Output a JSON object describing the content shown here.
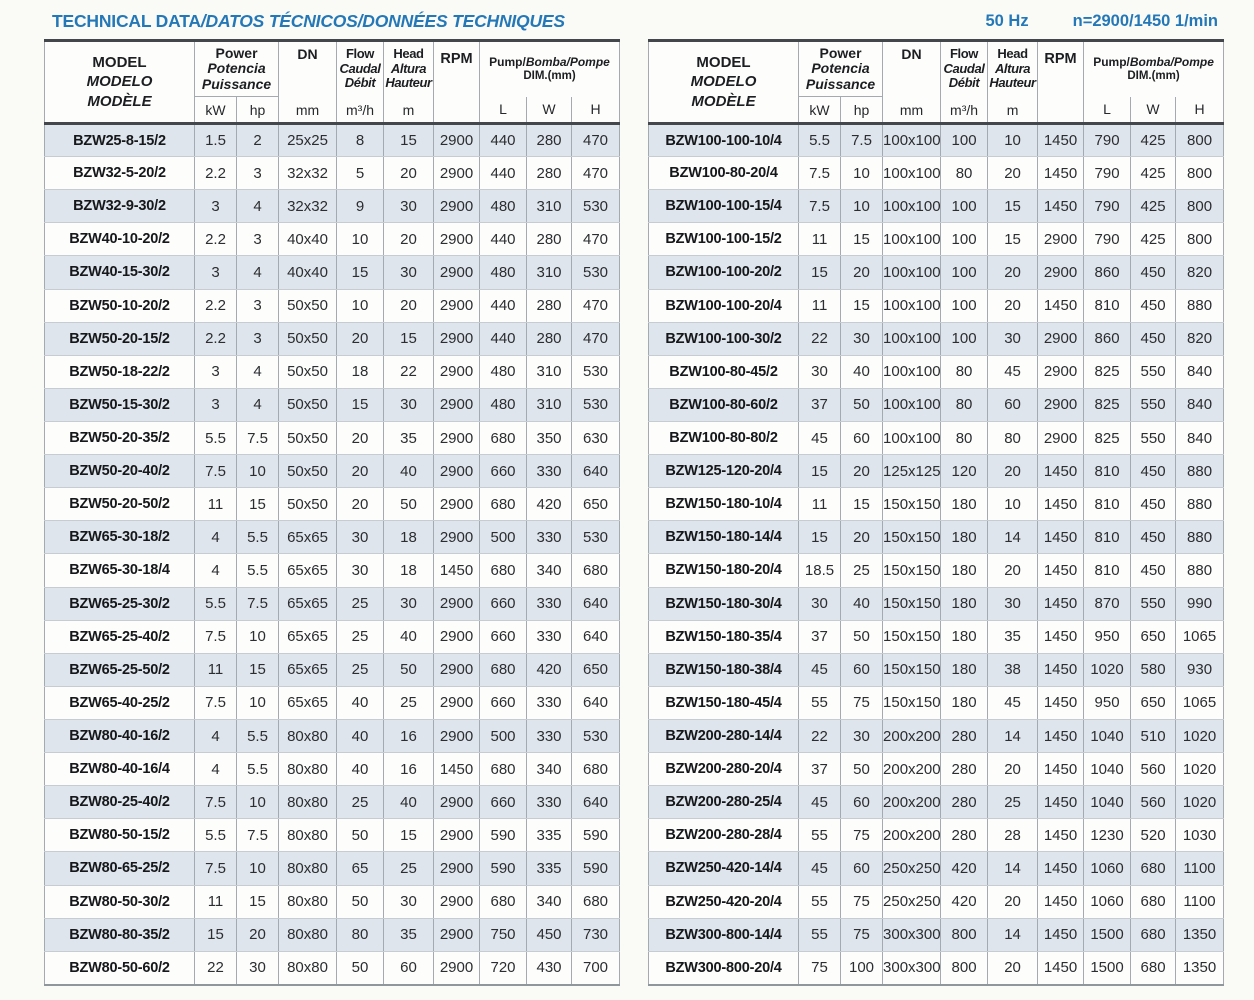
{
  "page": {
    "title_part1": "TECHNICAL DATA",
    "title_part2": "/DATOS TÉCNICOS/DONNÉES TECHNIQUES",
    "frequency": "50 Hz",
    "speed": "n=2900/1450 1/min",
    "accent_color": "#2478b7",
    "row_shade_color": "#dee5ec"
  },
  "table_header": {
    "model_lines": [
      "MODEL",
      "MODELO",
      "MODÈLE"
    ],
    "power_lines": [
      "Power",
      "Potencia",
      "Puissance"
    ],
    "power_units": [
      "kW",
      "hp"
    ],
    "dn_label": "DN",
    "dn_unit": "mm",
    "flow_lines": [
      "Flow",
      "Caudal",
      "Débit"
    ],
    "flow_unit": "m³/h",
    "head_lines": [
      "Head",
      "Altura",
      "Hauteur"
    ],
    "head_unit": "m",
    "rpm_label": "RPM",
    "dim_line1_a": "Pump/",
    "dim_line1_b": "Bomba/Pompe",
    "dim_line2": "DIM.(mm)",
    "dim_units": [
      "L",
      "W",
      "H"
    ]
  },
  "columns": [
    "MODEL",
    "kW",
    "hp",
    "DN mm",
    "Flow m³/h",
    "Head m",
    "RPM",
    "L",
    "W",
    "H"
  ],
  "tables": {
    "left": {
      "rows": [
        [
          "BZW25-8-15/2",
          "1.5",
          "2",
          "25x25",
          "8",
          "15",
          "2900",
          "440",
          "280",
          "470"
        ],
        [
          "BZW32-5-20/2",
          "2.2",
          "3",
          "32x32",
          "5",
          "20",
          "2900",
          "440",
          "280",
          "470"
        ],
        [
          "BZW32-9-30/2",
          "3",
          "4",
          "32x32",
          "9",
          "30",
          "2900",
          "480",
          "310",
          "530"
        ],
        [
          "BZW40-10-20/2",
          "2.2",
          "3",
          "40x40",
          "10",
          "20",
          "2900",
          "440",
          "280",
          "470"
        ],
        [
          "BZW40-15-30/2",
          "3",
          "4",
          "40x40",
          "15",
          "30",
          "2900",
          "480",
          "310",
          "530"
        ],
        [
          "BZW50-10-20/2",
          "2.2",
          "3",
          "50x50",
          "10",
          "20",
          "2900",
          "440",
          "280",
          "470"
        ],
        [
          "BZW50-20-15/2",
          "2.2",
          "3",
          "50x50",
          "20",
          "15",
          "2900",
          "440",
          "280",
          "470"
        ],
        [
          "BZW50-18-22/2",
          "3",
          "4",
          "50x50",
          "18",
          "22",
          "2900",
          "480",
          "310",
          "530"
        ],
        [
          "BZW50-15-30/2",
          "3",
          "4",
          "50x50",
          "15",
          "30",
          "2900",
          "480",
          "310",
          "530"
        ],
        [
          "BZW50-20-35/2",
          "5.5",
          "7.5",
          "50x50",
          "20",
          "35",
          "2900",
          "680",
          "350",
          "630"
        ],
        [
          "BZW50-20-40/2",
          "7.5",
          "10",
          "50x50",
          "20",
          "40",
          "2900",
          "660",
          "330",
          "640"
        ],
        [
          "BZW50-20-50/2",
          "11",
          "15",
          "50x50",
          "20",
          "50",
          "2900",
          "680",
          "420",
          "650"
        ],
        [
          "BZW65-30-18/2",
          "4",
          "5.5",
          "65x65",
          "30",
          "18",
          "2900",
          "500",
          "330",
          "530"
        ],
        [
          "BZW65-30-18/4",
          "4",
          "5.5",
          "65x65",
          "30",
          "18",
          "1450",
          "680",
          "340",
          "680"
        ],
        [
          "BZW65-25-30/2",
          "5.5",
          "7.5",
          "65x65",
          "25",
          "30",
          "2900",
          "660",
          "330",
          "640"
        ],
        [
          "BZW65-25-40/2",
          "7.5",
          "10",
          "65x65",
          "25",
          "40",
          "2900",
          "660",
          "330",
          "640"
        ],
        [
          "BZW65-25-50/2",
          "11",
          "15",
          "65x65",
          "25",
          "50",
          "2900",
          "680",
          "420",
          "650"
        ],
        [
          "BZW65-40-25/2",
          "7.5",
          "10",
          "65x65",
          "40",
          "25",
          "2900",
          "660",
          "330",
          "640"
        ],
        [
          "BZW80-40-16/2",
          "4",
          "5.5",
          "80x80",
          "40",
          "16",
          "2900",
          "500",
          "330",
          "530"
        ],
        [
          "BZW80-40-16/4",
          "4",
          "5.5",
          "80x80",
          "40",
          "16",
          "1450",
          "680",
          "340",
          "680"
        ],
        [
          "BZW80-25-40/2",
          "7.5",
          "10",
          "80x80",
          "25",
          "40",
          "2900",
          "660",
          "330",
          "640"
        ],
        [
          "BZW80-50-15/2",
          "5.5",
          "7.5",
          "80x80",
          "50",
          "15",
          "2900",
          "590",
          "335",
          "590"
        ],
        [
          "BZW80-65-25/2",
          "7.5",
          "10",
          "80x80",
          "65",
          "25",
          "2900",
          "590",
          "335",
          "590"
        ],
        [
          "BZW80-50-30/2",
          "11",
          "15",
          "80x80",
          "50",
          "30",
          "2900",
          "680",
          "340",
          "680"
        ],
        [
          "BZW80-80-35/2",
          "15",
          "20",
          "80x80",
          "80",
          "35",
          "2900",
          "750",
          "450",
          "730"
        ],
        [
          "BZW80-50-60/2",
          "22",
          "30",
          "80x80",
          "50",
          "60",
          "2900",
          "720",
          "430",
          "700"
        ]
      ]
    },
    "right": {
      "rows": [
        [
          "BZW100-100-10/4",
          "5.5",
          "7.5",
          "100x100",
          "100",
          "10",
          "1450",
          "790",
          "425",
          "800"
        ],
        [
          "BZW100-80-20/4",
          "7.5",
          "10",
          "100x100",
          "80",
          "20",
          "1450",
          "790",
          "425",
          "800"
        ],
        [
          "BZW100-100-15/4",
          "7.5",
          "10",
          "100x100",
          "100",
          "15",
          "1450",
          "790",
          "425",
          "800"
        ],
        [
          "BZW100-100-15/2",
          "11",
          "15",
          "100x100",
          "100",
          "15",
          "2900",
          "790",
          "425",
          "800"
        ],
        [
          "BZW100-100-20/2",
          "15",
          "20",
          "100x100",
          "100",
          "20",
          "2900",
          "860",
          "450",
          "820"
        ],
        [
          "BZW100-100-20/4",
          "11",
          "15",
          "100x100",
          "100",
          "20",
          "1450",
          "810",
          "450",
          "880"
        ],
        [
          "BZW100-100-30/2",
          "22",
          "30",
          "100x100",
          "100",
          "30",
          "2900",
          "860",
          "450",
          "820"
        ],
        [
          "BZW100-80-45/2",
          "30",
          "40",
          "100x100",
          "80",
          "45",
          "2900",
          "825",
          "550",
          "840"
        ],
        [
          "BZW100-80-60/2",
          "37",
          "50",
          "100x100",
          "80",
          "60",
          "2900",
          "825",
          "550",
          "840"
        ],
        [
          "BZW100-80-80/2",
          "45",
          "60",
          "100x100",
          "80",
          "80",
          "2900",
          "825",
          "550",
          "840"
        ],
        [
          "BZW125-120-20/4",
          "15",
          "20",
          "125x125",
          "120",
          "20",
          "1450",
          "810",
          "450",
          "880"
        ],
        [
          "BZW150-180-10/4",
          "11",
          "15",
          "150x150",
          "180",
          "10",
          "1450",
          "810",
          "450",
          "880"
        ],
        [
          "BZW150-180-14/4",
          "15",
          "20",
          "150x150",
          "180",
          "14",
          "1450",
          "810",
          "450",
          "880"
        ],
        [
          "BZW150-180-20/4",
          "18.5",
          "25",
          "150x150",
          "180",
          "20",
          "1450",
          "810",
          "450",
          "880"
        ],
        [
          "BZW150-180-30/4",
          "30",
          "40",
          "150x150",
          "180",
          "30",
          "1450",
          "870",
          "550",
          "990"
        ],
        [
          "BZW150-180-35/4",
          "37",
          "50",
          "150x150",
          "180",
          "35",
          "1450",
          "950",
          "650",
          "1065"
        ],
        [
          "BZW150-180-38/4",
          "45",
          "60",
          "150x150",
          "180",
          "38",
          "1450",
          "1020",
          "580",
          "930"
        ],
        [
          "BZW150-180-45/4",
          "55",
          "75",
          "150x150",
          "180",
          "45",
          "1450",
          "950",
          "650",
          "1065"
        ],
        [
          "BZW200-280-14/4",
          "22",
          "30",
          "200x200",
          "280",
          "14",
          "1450",
          "1040",
          "510",
          "1020"
        ],
        [
          "BZW200-280-20/4",
          "37",
          "50",
          "200x200",
          "280",
          "20",
          "1450",
          "1040",
          "560",
          "1020"
        ],
        [
          "BZW200-280-25/4",
          "45",
          "60",
          "200x200",
          "280",
          "25",
          "1450",
          "1040",
          "560",
          "1020"
        ],
        [
          "BZW200-280-28/4",
          "55",
          "75",
          "200x200",
          "280",
          "28",
          "1450",
          "1230",
          "520",
          "1030"
        ],
        [
          "BZW250-420-14/4",
          "45",
          "60",
          "250x250",
          "420",
          "14",
          "1450",
          "1060",
          "680",
          "1100"
        ],
        [
          "BZW250-420-20/4",
          "55",
          "75",
          "250x250",
          "420",
          "20",
          "1450",
          "1060",
          "680",
          "1100"
        ],
        [
          "BZW300-800-14/4",
          "55",
          "75",
          "300x300",
          "800",
          "14",
          "1450",
          "1500",
          "680",
          "1350"
        ],
        [
          "BZW300-800-20/4",
          "75",
          "100",
          "300x300",
          "800",
          "20",
          "1450",
          "1500",
          "680",
          "1350"
        ]
      ]
    }
  }
}
